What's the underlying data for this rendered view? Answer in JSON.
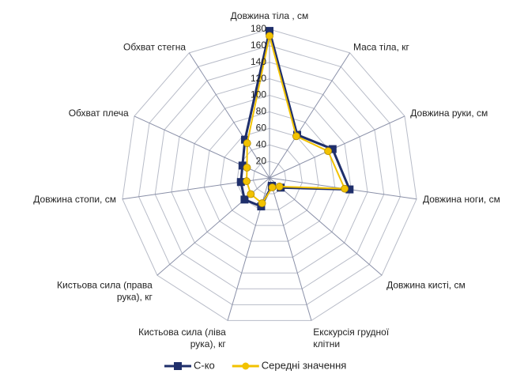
{
  "chart_data": {
    "type": "radar",
    "categories": [
      "Довжина тіла , см",
      "Маса тіла, кг",
      "Довжина руки, см",
      "Довжина ноги, см",
      "Довжина кисті, см",
      "Екскурсія грудної\nклітни",
      "Кистьова сила (ліва\nрука), кг",
      "Кистьова сила (права\nрука), кг",
      "Довжина стопи, см",
      "Обхват плеча",
      "Обхват стегна"
    ],
    "series": [
      {
        "name": "С-ко",
        "color": "#1f2f6b",
        "values": [
          178,
          62,
          84,
          98,
          18,
          10,
          36,
          40,
          35,
          36,
          55
        ]
      },
      {
        "name": "Середні значення",
        "color": "#f2c200",
        "values": [
          172,
          60,
          78,
          92,
          16,
          12,
          32,
          30,
          28,
          30,
          50
        ]
      }
    ],
    "ylim": [
      0,
      180
    ],
    "yticks": [
      20,
      40,
      60,
      80,
      100,
      120,
      140,
      160,
      180
    ],
    "grid": true,
    "legend": "bottom"
  }
}
